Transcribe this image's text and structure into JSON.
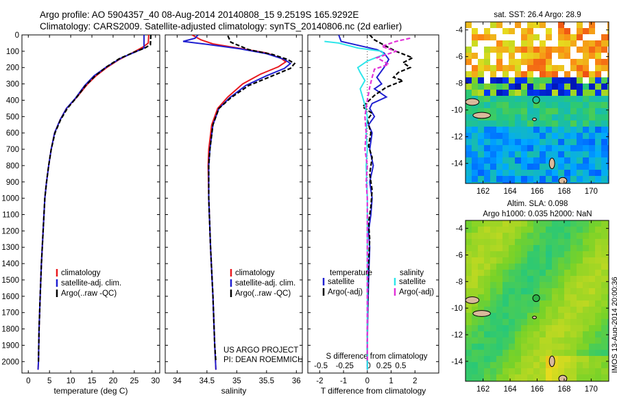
{
  "title_line1": "Argo profile: AO 5904357_40 08-Aug-2014 20140808_15 9.2519S 165.9292E",
  "title_line2": "Climatology: CARS2009. Satellite-adjusted climatology: synTS_20140806.nc (2d earlier)",
  "project_line1": "US ARGO PROJECT",
  "project_line2": "PI: DEAN ROEMMICH",
  "vertical_stamp": "IMOS 13-Aug-2014 20:00:36",
  "sst_title": "sat. SST: 26.4 Argo: 28.9",
  "sla_title1": "Altim. SLA: 0.098",
  "sla_title2": "Argo h1000: 0.035 h2000: NaN",
  "colors": {
    "climatology": "#e8191e",
    "satellite": "#1f1fd0",
    "argo": "#000000",
    "sal_satellite": "#2ee6ea",
    "sal_argo": "#e232d8"
  },
  "chart_data": [
    {
      "type": "line",
      "xlabel": "temperature (deg C)",
      "ylabel": "",
      "xlim": [
        -1.5,
        31
      ],
      "ylim": [
        2070,
        0
      ],
      "xticks": [
        0,
        5,
        10,
        15,
        20,
        25,
        30
      ],
      "yticks": [
        0,
        100,
        200,
        300,
        400,
        500,
        600,
        700,
        800,
        900,
        1000,
        1100,
        1200,
        1300,
        1400,
        1500,
        1600,
        1700,
        1800,
        1900,
        2000
      ],
      "legend": [
        "climatology",
        "satellite-adj. clim.",
        "Argo(..raw -QC)"
      ],
      "series": [
        {
          "name": "climatology",
          "color_key": "climatology",
          "dash": "solid",
          "values": [
            [
              28.4,
              0
            ],
            [
              28.3,
              50
            ],
            [
              27,
              75
            ],
            [
              24.5,
              110
            ],
            [
              21.5,
              150
            ],
            [
              18.5,
              200
            ],
            [
              16,
              250
            ],
            [
              14,
              300
            ],
            [
              11.5,
              380
            ],
            [
              9,
              450
            ],
            [
              7.5,
              520
            ],
            [
              6.2,
              600
            ],
            [
              5.4,
              700
            ],
            [
              4.8,
              800
            ],
            [
              4.3,
              900
            ],
            [
              3.9,
              1000
            ],
            [
              3.5,
              1200
            ],
            [
              3.1,
              1400
            ],
            [
              2.8,
              1600
            ],
            [
              2.55,
              1800
            ],
            [
              2.4,
              2000
            ],
            [
              2.3,
              2050
            ]
          ]
        },
        {
          "name": "satellite-adj. clim.",
          "color_key": "satellite",
          "dash": "solid",
          "values": [
            [
              27.3,
              0
            ],
            [
              27.3,
              80
            ],
            [
              25.2,
              105
            ],
            [
              22,
              140
            ],
            [
              18.5,
              195
            ],
            [
              15.5,
              250
            ],
            [
              13.3,
              310
            ],
            [
              11.2,
              385
            ],
            [
              9,
              450
            ],
            [
              7.5,
              520
            ],
            [
              6.2,
              600
            ],
            [
              5.4,
              700
            ],
            [
              4.8,
              800
            ],
            [
              4.3,
              900
            ],
            [
              3.9,
              1000
            ],
            [
              3.5,
              1200
            ],
            [
              3.1,
              1400
            ],
            [
              2.8,
              1600
            ],
            [
              2.55,
              1800
            ],
            [
              2.4,
              2000
            ],
            [
              2.3,
              2050
            ]
          ]
        },
        {
          "name": "Argo(..raw -QC)",
          "color_key": "argo",
          "dash": "dashed",
          "values": [
            [
              28.9,
              0
            ],
            [
              28.8,
              60
            ],
            [
              27.5,
              80
            ],
            [
              25,
              105
            ],
            [
              21.5,
              145
            ],
            [
              18.5,
              195
            ],
            [
              15.8,
              250
            ],
            [
              13.5,
              310
            ],
            [
              11.3,
              385
            ],
            [
              9.2,
              450
            ],
            [
              7.6,
              520
            ],
            [
              6.3,
              600
            ],
            [
              5.4,
              700
            ],
            [
              4.8,
              800
            ],
            [
              4.3,
              900
            ],
            [
              3.9,
              1000
            ],
            [
              3.5,
              1200
            ],
            [
              3.1,
              1400
            ],
            [
              2.8,
              1600
            ],
            [
              2.55,
              1800
            ],
            [
              2.4,
              2000
            ]
          ]
        }
      ]
    },
    {
      "type": "line",
      "xlabel": "salinity",
      "ylabel": "",
      "xlim": [
        33.8,
        36.1
      ],
      "ylim": [
        2070,
        0
      ],
      "xticks": [
        34,
        34.5,
        35,
        35.5,
        36
      ],
      "legend": [
        "climatology",
        "satellite-adj. clim.",
        "Argo(..raw -QC)"
      ],
      "series": [
        {
          "name": "climatology",
          "color_key": "climatology",
          "dash": "solid",
          "values": [
            [
              34.25,
              0
            ],
            [
              34.4,
              30
            ],
            [
              34.6,
              55
            ],
            [
              35.1,
              85
            ],
            [
              35.5,
              110
            ],
            [
              35.75,
              145
            ],
            [
              35.82,
              165
            ],
            [
              35.7,
              195
            ],
            [
              35.4,
              240
            ],
            [
              35.1,
              300
            ],
            [
              34.85,
              380
            ],
            [
              34.68,
              450
            ],
            [
              34.58,
              550
            ],
            [
              34.53,
              700
            ],
            [
              34.52,
              800
            ],
            [
              34.53,
              1000
            ],
            [
              34.56,
              1300
            ],
            [
              34.6,
              1600
            ],
            [
              34.63,
              1900
            ],
            [
              34.65,
              2050
            ]
          ]
        },
        {
          "name": "satellite-adj. clim.",
          "color_key": "satellite",
          "dash": "solid",
          "values": [
            [
              34.35,
              0
            ],
            [
              34.3,
              20
            ],
            [
              34.1,
              40
            ],
            [
              34.5,
              58
            ],
            [
              35.05,
              85
            ],
            [
              35.5,
              115
            ],
            [
              35.8,
              150
            ],
            [
              35.9,
              175
            ],
            [
              35.8,
              205
            ],
            [
              35.5,
              250
            ],
            [
              35.15,
              310
            ],
            [
              34.88,
              385
            ],
            [
              34.7,
              450
            ],
            [
              34.6,
              550
            ],
            [
              34.55,
              700
            ],
            [
              34.53,
              800
            ],
            [
              34.53,
              1000
            ],
            [
              34.56,
              1300
            ],
            [
              34.6,
              1600
            ],
            [
              34.63,
              1900
            ],
            [
              34.65,
              2050
            ]
          ]
        },
        {
          "name": "Argo(..raw -QC)",
          "color_key": "argo",
          "dash": "dashed",
          "values": [
            [
              34.85,
              5
            ],
            [
              34.9,
              45
            ],
            [
              35.2,
              90
            ],
            [
              35.6,
              120
            ],
            [
              35.85,
              150
            ],
            [
              35.97,
              175
            ],
            [
              35.9,
              205
            ],
            [
              35.6,
              250
            ],
            [
              35.2,
              310
            ],
            [
              34.9,
              385
            ],
            [
              34.7,
              450
            ],
            [
              34.6,
              550
            ],
            [
              34.55,
              700
            ],
            [
              34.53,
              800
            ],
            [
              34.53,
              1000
            ],
            [
              34.56,
              1300
            ],
            [
              34.6,
              1600
            ],
            [
              34.63,
              1900
            ],
            [
              34.65,
              2000
            ]
          ]
        }
      ]
    },
    {
      "type": "line",
      "xlabel": "T difference from climatology",
      "xlabel_top": "S difference from climatology",
      "ylabel": "",
      "xlim": [
        -2.5,
        3
      ],
      "ylim": [
        2070,
        0
      ],
      "xticks": [
        -2,
        -1,
        0,
        1,
        2
      ],
      "xticks_s": [
        "-0.5",
        "-0.25",
        "0",
        "0.25",
        "0.5"
      ],
      "xticks_s_pos": [
        -1.95,
        -0.95,
        0.05,
        0.7,
        1.4
      ],
      "legend_temperature_title": "temperature",
      "legend_salinity_title": "salinity",
      "legend_temperature": [
        "satellite",
        "Argo(-adj)"
      ],
      "legend_salinity": [
        "satellite",
        "Argo(-adj)"
      ],
      "series": [
        {
          "name": "T satellite",
          "color_key": "satellite",
          "dash": "solid",
          "values": [
            [
              -1.2,
              0
            ],
            [
              -1.1,
              40
            ],
            [
              -0.2,
              70
            ],
            [
              0.4,
              90
            ],
            [
              0.7,
              110
            ],
            [
              0.9,
              150
            ],
            [
              0.7,
              200
            ],
            [
              0.4,
              260
            ],
            [
              0.6,
              300
            ],
            [
              0.3,
              330
            ],
            [
              0.8,
              380
            ],
            [
              0.2,
              420
            ],
            [
              0.1,
              450
            ],
            [
              0.3,
              500
            ],
            [
              0.05,
              550
            ],
            [
              0.2,
              600
            ],
            [
              0.1,
              700
            ],
            [
              0.25,
              800
            ],
            [
              0.1,
              900
            ],
            [
              0.2,
              1000
            ],
            [
              0.15,
              1100
            ],
            [
              0.05,
              1200
            ],
            [
              0.1,
              1300
            ],
            [
              0.05,
              1500
            ],
            [
              0.02,
              1700
            ],
            [
              0,
              1900
            ],
            [
              0,
              2050
            ]
          ]
        },
        {
          "name": "T Argo(-adj)",
          "color_key": "argo",
          "dash": "dashed",
          "values": [
            [
              0.1,
              0
            ],
            [
              0.3,
              30
            ],
            [
              0.8,
              70
            ],
            [
              1.2,
              100
            ],
            [
              1.9,
              140
            ],
            [
              1.5,
              170
            ],
            [
              1.8,
              200
            ],
            [
              1.3,
              230
            ],
            [
              1.1,
              260
            ],
            [
              1.5,
              280
            ],
            [
              0.8,
              320
            ],
            [
              0.3,
              370
            ],
            [
              -0.2,
              440
            ],
            [
              0.2,
              480
            ],
            [
              0,
              520
            ],
            [
              0.15,
              600
            ],
            [
              0.05,
              680
            ],
            [
              0.2,
              750
            ],
            [
              0.1,
              850
            ],
            [
              0.2,
              950
            ],
            [
              0.15,
              1050
            ],
            [
              0.05,
              1150
            ],
            [
              0.1,
              1250
            ],
            [
              0.05,
              1400
            ],
            [
              0.02,
              1600
            ],
            [
              0,
              1800
            ],
            [
              0,
              2000
            ]
          ]
        },
        {
          "name": "S satellite",
          "color_key": "sal_satellite",
          "dash": "solid",
          "values": [
            [
              -1.8,
              40
            ],
            [
              -1.2,
              50
            ],
            [
              -0.4,
              80
            ],
            [
              0.6,
              100
            ],
            [
              0.7,
              120
            ],
            [
              0,
              160
            ],
            [
              -0.4,
              200
            ],
            [
              -0.3,
              230
            ],
            [
              -0.1,
              280
            ],
            [
              -0.3,
              330
            ],
            [
              -0.2,
              380
            ],
            [
              -0.1,
              430
            ],
            [
              0,
              500
            ],
            [
              -0.05,
              600
            ],
            [
              0,
              700
            ],
            [
              -0.05,
              800
            ],
            [
              0,
              1000
            ],
            [
              0,
              1300
            ],
            [
              0,
              1600
            ],
            [
              0,
              1900
            ],
            [
              0,
              2050
            ]
          ]
        },
        {
          "name": "S Argo(-adj)",
          "color_key": "sal_argo",
          "dash": "dashed",
          "values": [
            [
              1.8,
              20
            ],
            [
              1.2,
              40
            ],
            [
              0.6,
              70
            ],
            [
              1.2,
              100
            ],
            [
              0.4,
              140
            ],
            [
              0.9,
              180
            ],
            [
              0.3,
              210
            ],
            [
              0.2,
              260
            ],
            [
              0.1,
              320
            ],
            [
              0,
              400
            ],
            [
              -0.1,
              500
            ],
            [
              -0.05,
              600
            ],
            [
              -0.1,
              700
            ],
            [
              0,
              800
            ],
            [
              -0.05,
              900
            ],
            [
              0,
              1000
            ],
            [
              0,
              1300
            ],
            [
              0,
              1600
            ],
            [
              0,
              1900
            ],
            [
              0,
              2000
            ]
          ]
        }
      ]
    },
    {
      "type": "heatmap",
      "title": "sat. SST: 26.4 Argo: 28.9",
      "xlim": [
        160.7,
        171.3
      ],
      "ylim": [
        -15.5,
        -3.4
      ],
      "xticks": [
        162,
        164,
        166,
        168,
        170
      ],
      "yticks": [
        -4,
        -6,
        -8,
        -10,
        -12,
        -14
      ],
      "marker": {
        "lon": 165.93,
        "lat": -9.25
      }
    },
    {
      "type": "heatmap",
      "xlim": [
        160.7,
        171.3
      ],
      "ylim": [
        -15.5,
        -3.4
      ],
      "xticks": [
        162,
        164,
        166,
        168,
        170
      ],
      "yticks": [
        -4,
        -6,
        -8,
        -10,
        -12,
        -14
      ],
      "marker": {
        "lon": 165.93,
        "lat": -9.25
      }
    }
  ]
}
